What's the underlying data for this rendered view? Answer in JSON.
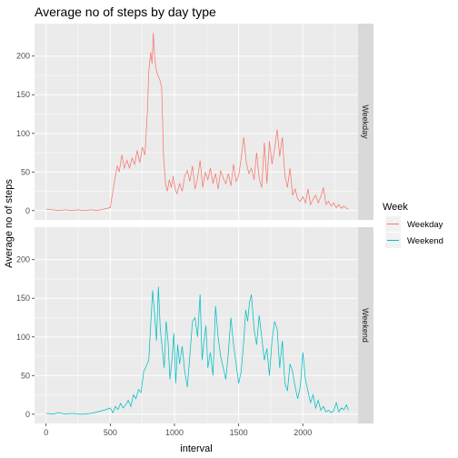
{
  "chart_data": {
    "type": "line",
    "title": "Average no of steps by day type",
    "xlabel": "interval",
    "ylabel": "Average no of steps",
    "xlim": [
      -90,
      2430
    ],
    "ylim": [
      -12,
      242
    ],
    "x_ticks": [
      0,
      500,
      1000,
      1500,
      2000
    ],
    "x_tick_labels": [
      "0",
      "500",
      "1000",
      "1500",
      "2000"
    ],
    "y_ticks": [
      0,
      50,
      100,
      150,
      200
    ],
    "y_tick_labels": [
      "0",
      "50",
      "100",
      "150",
      "200"
    ],
    "grid": true,
    "legend": {
      "title": "Week",
      "placement": "right"
    },
    "facets": [
      "Weekday",
      "Weekend"
    ],
    "series": [
      {
        "name": "Weekday",
        "color": "#F8766D",
        "x": [
          0,
          50,
          100,
          150,
          200,
          250,
          300,
          350,
          400,
          450,
          500,
          520,
          540,
          555,
          570,
          590,
          610,
          630,
          650,
          670,
          690,
          710,
          730,
          750,
          770,
          790,
          800,
          815,
          825,
          835,
          845,
          855,
          870,
          885,
          900,
          915,
          930,
          945,
          960,
          975,
          990,
          1005,
          1020,
          1040,
          1060,
          1080,
          1100,
          1120,
          1140,
          1160,
          1180,
          1200,
          1220,
          1240,
          1260,
          1280,
          1300,
          1320,
          1340,
          1360,
          1380,
          1400,
          1420,
          1440,
          1460,
          1480,
          1500,
          1520,
          1540,
          1560,
          1580,
          1600,
          1620,
          1640,
          1660,
          1680,
          1700,
          1720,
          1740,
          1760,
          1780,
          1800,
          1820,
          1840,
          1860,
          1880,
          1900,
          1920,
          1940,
          1960,
          1980,
          2000,
          2020,
          2040,
          2060,
          2080,
          2100,
          2120,
          2140,
          2160,
          2180,
          2200,
          2220,
          2240,
          2260,
          2280,
          2300,
          2320,
          2340,
          2355
        ],
        "y": [
          2,
          1,
          0,
          1,
          0,
          1,
          0,
          1,
          0,
          2,
          4,
          25,
          45,
          58,
          50,
          72,
          55,
          65,
          55,
          68,
          60,
          78,
          62,
          82,
          72,
          130,
          180,
          205,
          190,
          230,
          200,
          185,
          175,
          170,
          160,
          70,
          35,
          25,
          40,
          30,
          45,
          28,
          22,
          35,
          25,
          45,
          52,
          38,
          58,
          28,
          42,
          65,
          30,
          50,
          40,
          55,
          35,
          48,
          28,
          52,
          42,
          35,
          48,
          32,
          60,
          38,
          45,
          68,
          95,
          62,
          48,
          55,
          40,
          75,
          42,
          30,
          88,
          35,
          90,
          60,
          80,
          105,
          70,
          95,
          45,
          30,
          55,
          20,
          28,
          15,
          12,
          18,
          10,
          28,
          8,
          15,
          20,
          10,
          18,
          30,
          8,
          12,
          6,
          10,
          4,
          8,
          3,
          6,
          3,
          2
        ],
        "peak": {
          "x": 835,
          "y": 230
        }
      },
      {
        "name": "Weekend",
        "color": "#00BFC4",
        "x": [
          0,
          50,
          100,
          150,
          200,
          250,
          300,
          350,
          400,
          450,
          500,
          520,
          540,
          560,
          580,
          600,
          620,
          640,
          660,
          680,
          700,
          720,
          740,
          760,
          780,
          800,
          815,
          830,
          845,
          860,
          875,
          890,
          905,
          920,
          935,
          950,
          965,
          980,
          995,
          1010,
          1025,
          1040,
          1060,
          1080,
          1100,
          1120,
          1140,
          1160,
          1180,
          1200,
          1215,
          1230,
          1245,
          1260,
          1280,
          1300,
          1320,
          1340,
          1360,
          1380,
          1400,
          1420,
          1440,
          1460,
          1480,
          1500,
          1520,
          1540,
          1555,
          1570,
          1585,
          1600,
          1620,
          1640,
          1660,
          1680,
          1700,
          1720,
          1740,
          1760,
          1780,
          1800,
          1820,
          1840,
          1860,
          1880,
          1900,
          1920,
          1940,
          1960,
          1980,
          2000,
          2020,
          2040,
          2060,
          2080,
          2100,
          2120,
          2140,
          2160,
          2180,
          2200,
          2220,
          2240,
          2260,
          2280,
          2300,
          2320,
          2340,
          2355
        ],
        "y": [
          1,
          0,
          2,
          0,
          1,
          0,
          0,
          1,
          3,
          5,
          8,
          2,
          10,
          6,
          14,
          8,
          12,
          18,
          10,
          25,
          20,
          32,
          28,
          55,
          62,
          70,
          115,
          160,
          130,
          95,
          165,
          110,
          85,
          60,
          120,
          95,
          45,
          70,
          105,
          40,
          90,
          65,
          88,
          55,
          35,
          75,
          120,
          125,
          100,
          155,
          70,
          95,
          115,
          60,
          80,
          50,
          140,
          100,
          75,
          60,
          45,
          80,
          125,
          90,
          65,
          40,
          55,
          95,
          135,
          120,
          145,
          155,
          110,
          90,
          128,
          100,
          70,
          85,
          50,
          95,
          120,
          110,
          60,
          95,
          40,
          30,
          65,
          55,
          35,
          20,
          35,
          80,
          45,
          30,
          15,
          25,
          8,
          18,
          5,
          10,
          3,
          5,
          2,
          4,
          15,
          3,
          8,
          6,
          12,
          5
        ]
      }
    ]
  }
}
